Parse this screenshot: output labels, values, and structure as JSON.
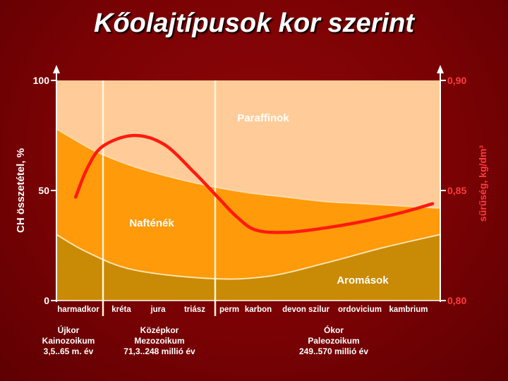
{
  "title": "Kőolajtípusok kor szerint",
  "chart_data": {
    "type": "area",
    "x_categories": [
      "harmadkor",
      "kréta",
      "jura",
      "triász",
      "perm",
      "karbon",
      "devon",
      "szilur",
      "ordovicium",
      "kambrium"
    ],
    "eras": [
      {
        "name": "Újkor",
        "sub": "Kainozoikum",
        "range": "3,5..65 m. év"
      },
      {
        "name": "Középkor",
        "sub": "Mezozoikum",
        "range": "71,3..248 millió év"
      },
      {
        "name": "Ókor",
        "sub": "Paleozoikum",
        "range": "249..570 millió év"
      }
    ],
    "y_left": {
      "label": "CH összetétel, %",
      "ticks": [
        "0",
        "50",
        "100"
      ],
      "ylim": [
        0,
        100
      ]
    },
    "y_right": {
      "label": "sűrűség, kg/dm³",
      "ticks": [
        "0,80",
        "0,85",
        "0,90"
      ],
      "ylim": [
        0.8,
        0.9
      ]
    },
    "areas": [
      {
        "name": "Aromások",
        "color": "#c98a05",
        "upper_boundary_x": [
          0,
          0.08,
          0.2,
          0.4,
          0.55,
          0.7,
          0.85,
          1
        ],
        "upper_boundary_y": [
          30,
          22,
          14,
          10,
          11,
          17,
          24,
          30
        ]
      },
      {
        "name": "Nafténék",
        "color": "#ff9a0a",
        "upper_boundary_x": [
          0,
          0.1,
          0.2,
          0.3,
          0.4,
          0.5,
          0.6,
          0.7,
          0.8,
          0.9,
          1
        ],
        "upper_boundary_y": [
          78,
          68,
          61,
          56,
          52,
          49,
          47,
          45,
          44,
          43,
          42
        ]
      },
      {
        "name": "Paraffinok",
        "color": "#ffcc99",
        "upper_boundary": 100
      }
    ],
    "density_curve": {
      "color": "#ff1a10",
      "x": [
        0.05,
        0.08,
        0.12,
        0.2,
        0.28,
        0.36,
        0.42,
        0.47,
        0.52,
        0.6,
        0.7,
        0.8,
        0.9,
        0.98
      ],
      "y": [
        0.847,
        0.86,
        0.87,
        0.875,
        0.871,
        0.858,
        0.847,
        0.838,
        0.832,
        0.831,
        0.833,
        0.836,
        0.84,
        0.844
      ]
    }
  }
}
